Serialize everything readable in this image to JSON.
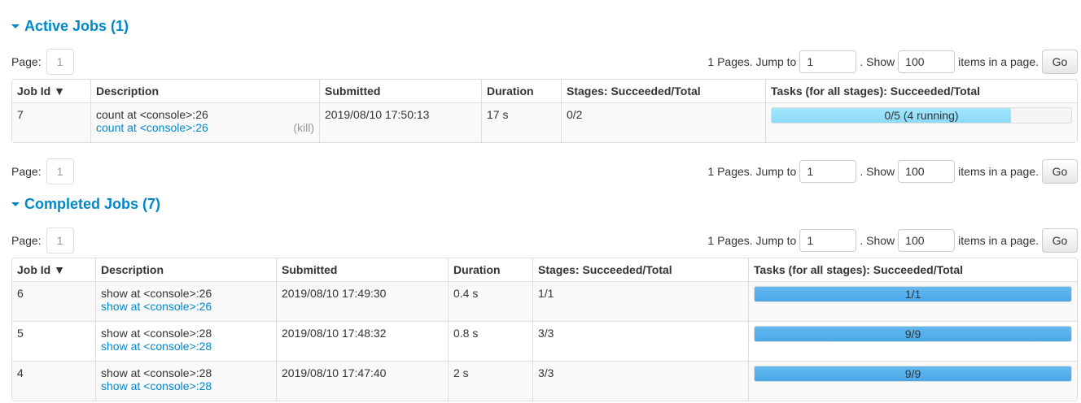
{
  "active": {
    "title": "Active Jobs (1)",
    "pager": {
      "page_label": "Page:",
      "page": "1",
      "pages_text": "1 Pages. Jump to",
      "jump_value": "1",
      "show_text": ". Show",
      "show_value": "100",
      "items_text": "items in a page.",
      "go": "Go"
    },
    "headers": [
      "Job Id ▼",
      "Description",
      "Submitted",
      "Duration",
      "Stages: Succeeded/Total",
      "Tasks (for all stages): Succeeded/Total"
    ],
    "rows": [
      {
        "id": "7",
        "desc": "count at <console>:26",
        "link": "count at <console>:26",
        "kill": "(kill)",
        "submitted": "2019/08/10 17:50:13",
        "duration": "17 s",
        "stages": "0/2",
        "tasks": "0/5 (4 running)",
        "progress_running_pct": 80,
        "progress_done_pct": 0
      }
    ]
  },
  "completed": {
    "title": "Completed Jobs (7)",
    "pager": {
      "page_label": "Page:",
      "page": "1",
      "pages_text": "1 Pages. Jump to",
      "jump_value": "1",
      "show_text": ". Show",
      "show_value": "100",
      "items_text": "items in a page.",
      "go": "Go"
    },
    "headers": [
      "Job Id ▼",
      "Description",
      "Submitted",
      "Duration",
      "Stages: Succeeded/Total",
      "Tasks (for all stages): Succeeded/Total"
    ],
    "rows": [
      {
        "id": "6",
        "desc": "show at <console>:26",
        "link": "show at <console>:26",
        "submitted": "2019/08/10 17:49:30",
        "duration": "0.4 s",
        "stages": "1/1",
        "tasks": "1/1",
        "progress_done_pct": 100
      },
      {
        "id": "5",
        "desc": "show at <console>:28",
        "link": "show at <console>:28",
        "submitted": "2019/08/10 17:48:32",
        "duration": "0.8 s",
        "stages": "3/3",
        "tasks": "9/9",
        "progress_done_pct": 100
      },
      {
        "id": "4",
        "desc": "show at <console>:28",
        "link": "show at <console>:28",
        "submitted": "2019/08/10 17:47:40",
        "duration": "2 s",
        "stages": "3/3",
        "tasks": "9/9",
        "progress_done_pct": 100
      }
    ]
  },
  "bottom_pager": {
    "page_label": "Page:",
    "page": "1",
    "pages_text": "1 Pages. Jump to",
    "jump_value": "1",
    "show_text": ". Show",
    "show_value": "100",
    "items_text": "items in a page.",
    "go": "Go"
  }
}
